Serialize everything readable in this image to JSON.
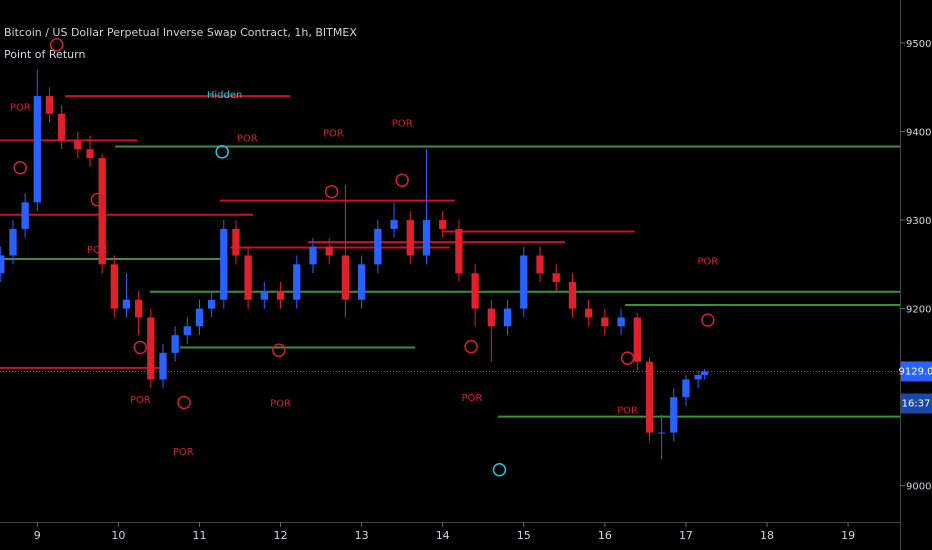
{
  "chart_data": {
    "type": "candlestick",
    "title": "Bitcoin / US Dollar Perpetual Inverse Swap Contract, 1h, BITMEX",
    "indicator": "Point of Return",
    "up_color": "#2962ff",
    "down_color": "#e0202a",
    "xlim": [
      8.54,
      19.64
    ],
    "xticks": [
      9,
      10,
      11,
      12,
      13,
      14,
      15,
      16,
      17,
      18,
      19
    ],
    "ylim": [
      8959,
      9548.5
    ],
    "yticks": [
      {
        "value": 9000,
        "label": "9000.0"
      },
      {
        "value": 9100,
        "label": "9100.0"
      },
      {
        "value": 9200,
        "label": "9200.0"
      },
      {
        "value": 9300,
        "label": "9300.0"
      },
      {
        "value": 9400,
        "label": "9400.0"
      },
      {
        "value": 9500,
        "label": "9500.0"
      }
    ],
    "candles": {
      "x": [
        8.55,
        8.7,
        8.85,
        9.0,
        9.15,
        9.3,
        9.5,
        9.65,
        9.8,
        9.95,
        10.1,
        10.25,
        10.4,
        10.55,
        10.7,
        10.85,
        11.0,
        11.15,
        11.3,
        11.45,
        11.6,
        11.8,
        12.0,
        12.2,
        12.4,
        12.6,
        12.8,
        13.0,
        13.2,
        13.4,
        13.6,
        13.8,
        14.0,
        14.2,
        14.4,
        14.6,
        14.8,
        15.0,
        15.2,
        15.4,
        15.6,
        15.8,
        16.0,
        16.2,
        16.4,
        16.55,
        16.7,
        16.85,
        17.0,
        17.15,
        17.23
      ],
      "open": [
        9240,
        9260,
        9290,
        9320,
        9440,
        9420,
        9390,
        9380,
        9370,
        9250,
        9200,
        9210,
        9190,
        9120,
        9150,
        9170,
        9180,
        9200,
        9210,
        9290,
        9260,
        9210,
        9220,
        9210,
        9250,
        9270,
        9260,
        9210,
        9250,
        9290,
        9300,
        9260,
        9300,
        9290,
        9240,
        9200,
        9180,
        9200,
        9260,
        9240,
        9230,
        9200,
        9190,
        9180,
        9190,
        9140,
        9060,
        9060,
        9100,
        9120,
        9125
      ],
      "high": [
        9270,
        9300,
        9330,
        9470,
        9450,
        9430,
        9400,
        9395,
        9375,
        9260,
        9240,
        9220,
        9200,
        9160,
        9180,
        9190,
        9210,
        9220,
        9300,
        9300,
        9270,
        9230,
        9230,
        9260,
        9280,
        9280,
        9340,
        9260,
        9300,
        9320,
        9310,
        9380,
        9310,
        9300,
        9250,
        9210,
        9210,
        9270,
        9270,
        9250,
        9240,
        9210,
        9200,
        9200,
        9195,
        9145,
        9080,
        9110,
        9125,
        9130,
        9132
      ],
      "low": [
        9230,
        9250,
        9280,
        9310,
        9410,
        9380,
        9370,
        9360,
        9240,
        9190,
        9190,
        9170,
        9110,
        9110,
        9140,
        9160,
        9170,
        9190,
        9200,
        9250,
        9200,
        9200,
        9200,
        9200,
        9240,
        9250,
        9190,
        9200,
        9240,
        9280,
        9250,
        9250,
        9280,
        9230,
        9180,
        9140,
        9170,
        9190,
        9230,
        9220,
        9190,
        9180,
        9170,
        9170,
        9130,
        9050,
        9030,
        9050,
        9090,
        9110,
        9120
      ],
      "close": [
        9260,
        9290,
        9320,
        9440,
        9420,
        9390,
        9380,
        9370,
        9250,
        9200,
        9210,
        9190,
        9120,
        9150,
        9170,
        9180,
        9200,
        9210,
        9290,
        9260,
        9210,
        9220,
        9210,
        9250,
        9270,
        9260,
        9210,
        9250,
        9290,
        9300,
        9260,
        9300,
        9290,
        9240,
        9200,
        9180,
        9200,
        9260,
        9240,
        9230,
        9200,
        9190,
        9180,
        9190,
        9140,
        9060,
        9060,
        9100,
        9120,
        9125,
        9129
      ]
    },
    "levels": [
      {
        "start": 9.34,
        "end": 12.12,
        "price": 9440,
        "color": "#c8102e"
      },
      {
        "start": 8.54,
        "end": 10.23,
        "price": 9390,
        "color": "#c8102e"
      },
      {
        "start": 9.96,
        "end": 19.64,
        "price": 9383,
        "color": "#3e8e3e"
      },
      {
        "start": 11.25,
        "end": 14.15,
        "price": 9322,
        "color": "#c8102e"
      },
      {
        "start": 8.54,
        "end": 11.66,
        "price": 9306,
        "color": "#c8102e"
      },
      {
        "start": 14.0,
        "end": 16.37,
        "price": 9287,
        "color": "#c8102e"
      },
      {
        "start": 12.34,
        "end": 15.51,
        "price": 9275,
        "color": "#c8102e"
      },
      {
        "start": 11.38,
        "end": 14.09,
        "price": 9269,
        "color": "#c8102e"
      },
      {
        "start": 8.54,
        "end": 11.31,
        "price": 9256,
        "color": "#3e8e3e"
      },
      {
        "start": 10.39,
        "end": 19.64,
        "price": 9219,
        "color": "#3e8e3e"
      },
      {
        "start": 16.25,
        "end": 19.64,
        "price": 9204,
        "color": "#3e8e3e"
      },
      {
        "start": 10.76,
        "end": 13.66,
        "price": 9156,
        "color": "#3e8e3e"
      },
      {
        "start": 8.54,
        "end": 10.51,
        "price": 9133,
        "color": "#c8102e"
      },
      {
        "start": 14.68,
        "end": 19.64,
        "price": 9078,
        "color": "#3e8e3e"
      }
    ],
    "current_price": {
      "value": 9129,
      "label": "9129.0",
      "color": "#2962ff"
    },
    "countdown": "16:37",
    "circles": [
      {
        "x": 9.24,
        "price": 9498,
        "color": "#d0202e"
      },
      {
        "x": 8.79,
        "price": 9359,
        "color": "#d0202e"
      },
      {
        "x": 9.74,
        "price": 9323,
        "color": "#d0202e"
      },
      {
        "x": 10.27,
        "price": 9156,
        "color": "#d0202e"
      },
      {
        "x": 10.81,
        "price": 9094,
        "color": "#d0202e"
      },
      {
        "x": 11.98,
        "price": 9153,
        "color": "#d0202e"
      },
      {
        "x": 12.63,
        "price": 9332,
        "color": "#d0202e"
      },
      {
        "x": 13.5,
        "price": 9345,
        "color": "#d0202e"
      },
      {
        "x": 14.35,
        "price": 9157,
        "color": "#d0202e"
      },
      {
        "x": 16.28,
        "price": 9144,
        "color": "#d0202e"
      },
      {
        "x": 17.27,
        "price": 9187,
        "color": "#d0202e"
      },
      {
        "x": 11.28,
        "price": 9377,
        "color": "#26c6da"
      },
      {
        "x": 14.7,
        "price": 9018,
        "color": "#26c6da"
      }
    ],
    "annotations": [
      {
        "label": "POR",
        "x": 8.79,
        "price": 9427,
        "color": "#d0202e"
      },
      {
        "label": "POR",
        "x": 11.59,
        "price": 9392,
        "color": "#d0202e"
      },
      {
        "label": "POR",
        "x": 12.65,
        "price": 9398,
        "color": "#d0202e"
      },
      {
        "label": "POR",
        "x": 13.5,
        "price": 9409,
        "color": "#d0202e"
      },
      {
        "label": "POR",
        "x": 9.74,
        "price": 9266,
        "color": "#d0202e"
      },
      {
        "label": "POR",
        "x": 10.27,
        "price": 9097,
        "color": "#d0202e"
      },
      {
        "label": "POR",
        "x": 10.8,
        "price": 9038,
        "color": "#d0202e"
      },
      {
        "label": "POR",
        "x": 12.0,
        "price": 9093,
        "color": "#d0202e"
      },
      {
        "label": "POR",
        "x": 14.36,
        "price": 9099,
        "color": "#d0202e"
      },
      {
        "label": "POR",
        "x": 16.28,
        "price": 9085,
        "color": "#d0202e"
      },
      {
        "label": "POR",
        "x": 17.27,
        "price": 9253,
        "color": "#d0202e"
      },
      {
        "label": "Hidden",
        "x": 11.31,
        "price": 9441,
        "color": "#26c6da"
      }
    ]
  }
}
